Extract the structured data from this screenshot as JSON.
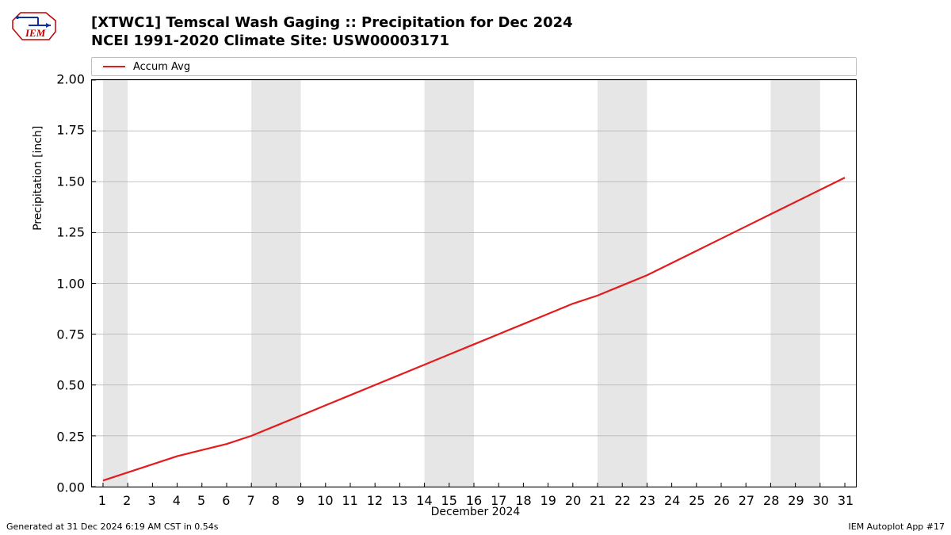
{
  "logo_text": "IEM",
  "title_line1": "[XTWC1] Temscal Wash Gaging :: Precipitation for Dec 2024",
  "title_line2": "NCEI 1991-2020 Climate Site: USW00003171",
  "legend": {
    "label": "Accum Avg",
    "color": "#e41a1c"
  },
  "chart": {
    "type": "line",
    "background_color": "#ffffff",
    "band_color": "#e6e6e6",
    "grid_color": "#b0b0b0",
    "border_color": "#000000",
    "x_axis": {
      "label": "December 2024",
      "min": 1,
      "max": 31,
      "ticks": [
        1,
        2,
        3,
        4,
        5,
        6,
        7,
        8,
        9,
        10,
        11,
        12,
        13,
        14,
        15,
        16,
        17,
        18,
        19,
        20,
        21,
        22,
        23,
        24,
        25,
        26,
        27,
        28,
        29,
        30,
        31
      ]
    },
    "y_axis": {
      "label": "Precipitation [inch]",
      "min": 0.0,
      "max": 2.0,
      "ticks": [
        0.0,
        0.25,
        0.5,
        0.75,
        1.0,
        1.25,
        1.5,
        1.75,
        2.0
      ]
    },
    "shaded_bands": [
      {
        "start": 1,
        "end": 2
      },
      {
        "start": 7,
        "end": 9
      },
      {
        "start": 14,
        "end": 16
      },
      {
        "start": 21,
        "end": 23
      },
      {
        "start": 28,
        "end": 30
      }
    ],
    "series": {
      "color": "#e41a1c",
      "line_width": 2.2,
      "x": [
        1,
        2,
        3,
        4,
        5,
        6,
        7,
        8,
        9,
        10,
        11,
        12,
        13,
        14,
        15,
        16,
        17,
        18,
        19,
        20,
        21,
        22,
        23,
        24,
        25,
        26,
        27,
        28,
        29,
        30,
        31
      ],
      "y": [
        0.03,
        0.07,
        0.11,
        0.15,
        0.18,
        0.21,
        0.25,
        0.3,
        0.35,
        0.4,
        0.45,
        0.5,
        0.55,
        0.6,
        0.65,
        0.7,
        0.75,
        0.8,
        0.85,
        0.9,
        0.94,
        0.99,
        1.04,
        1.1,
        1.16,
        1.22,
        1.28,
        1.34,
        1.4,
        1.46,
        1.52
      ]
    }
  },
  "footer_left": "Generated at 31 Dec 2024 6:19 AM CST in 0.54s",
  "footer_right": "IEM Autoplot App #17"
}
